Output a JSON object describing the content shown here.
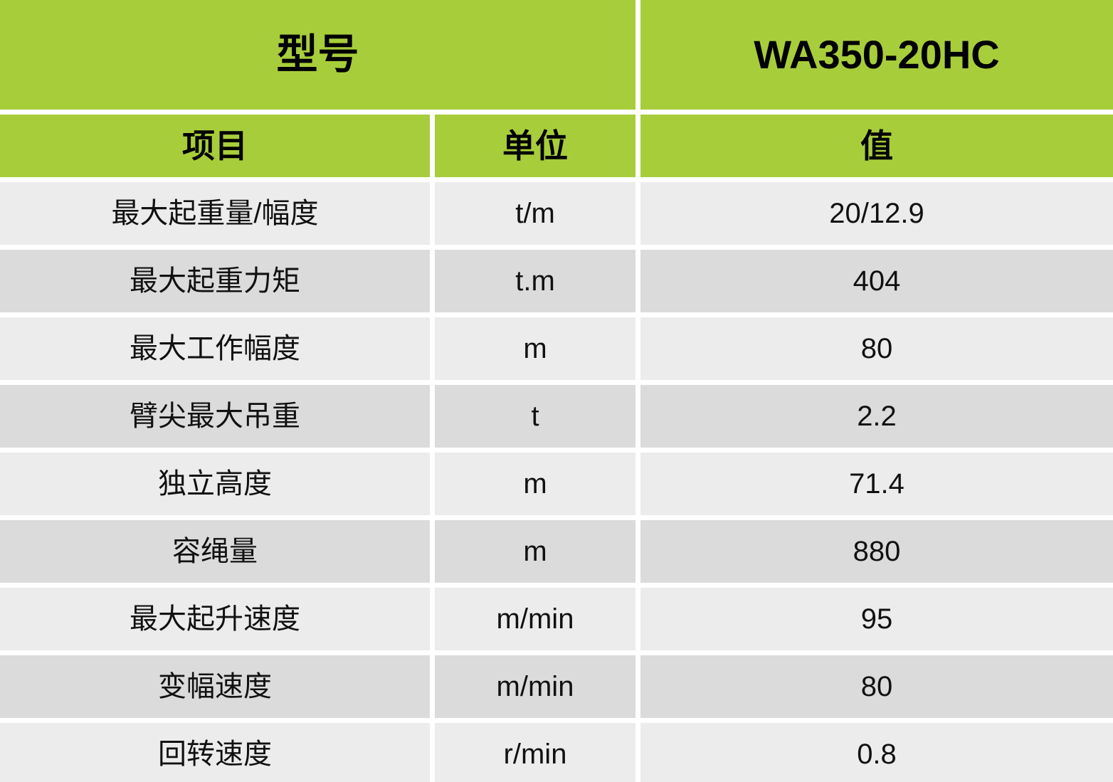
{
  "chart_data": {
    "type": "table",
    "title": "",
    "columns": [
      "项目",
      "单位",
      "值"
    ],
    "rows": [
      [
        "最大起重量/幅度",
        "t/m",
        "20/12.9"
      ],
      [
        "最大起重力矩",
        "t.m",
        "404"
      ],
      [
        "最大工作幅度",
        "m",
        "80"
      ],
      [
        "臂尖最大吊重",
        "t",
        "2.2"
      ],
      [
        "独立高度",
        "m",
        "71.4"
      ],
      [
        "容绳量",
        "m",
        "880"
      ],
      [
        "最大起升速度",
        "m/min",
        "95"
      ],
      [
        "变幅速度",
        "m/min",
        "80"
      ],
      [
        "回转速度",
        "r/min",
        "0.8"
      ]
    ]
  },
  "table": {
    "header": {
      "model_label": "型号",
      "model_value": "WA350-20HC"
    },
    "columns": {
      "item": "项目",
      "unit": "单位",
      "value": "值"
    },
    "rows": [
      {
        "item": "最大起重量/幅度",
        "unit": "t/m",
        "value": "20/12.9"
      },
      {
        "item": "最大起重力矩",
        "unit": "t.m",
        "value": "404"
      },
      {
        "item": "最大工作幅度",
        "unit": "m",
        "value": "80"
      },
      {
        "item": "臂尖最大吊重",
        "unit": "t",
        "value": "2.2"
      },
      {
        "item": "独立高度",
        "unit": "m",
        "value": "71.4"
      },
      {
        "item": "容绳量",
        "unit": "m",
        "value": "880"
      },
      {
        "item": "最大起升速度",
        "unit": "m/min",
        "value": "95"
      },
      {
        "item": "变幅速度",
        "unit": "m/min",
        "value": "80"
      },
      {
        "item": "回转速度",
        "unit": "r/min",
        "value": "0.8"
      }
    ],
    "colors": {
      "header_green": "#a8cd3b",
      "row_light": "#ececec",
      "row_dark": "#dbdbdb",
      "gutter_white": "#ffffff",
      "text": "#111111"
    }
  }
}
